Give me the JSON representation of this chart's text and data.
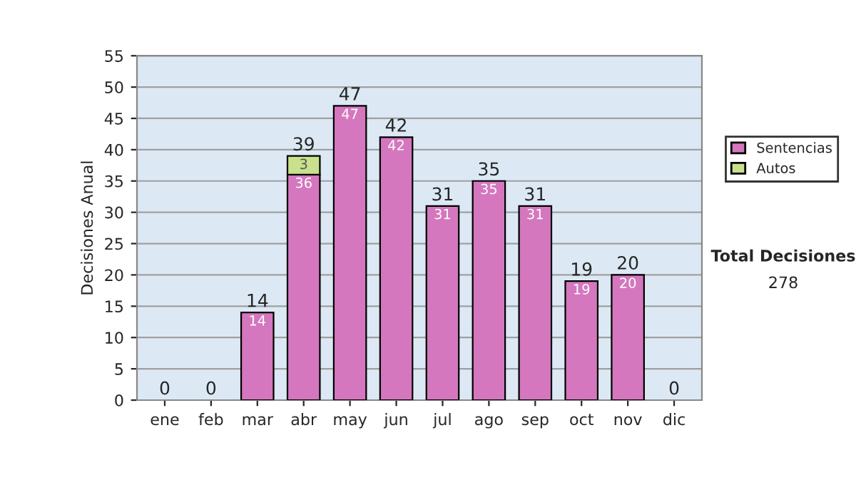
{
  "chart_data": {
    "type": "bar",
    "stacked": true,
    "ylabel": "Decisiones Anual",
    "categories": [
      "ene",
      "feb",
      "mar",
      "abr",
      "may",
      "jun",
      "jul",
      "ago",
      "sep",
      "oct",
      "nov",
      "dic"
    ],
    "series": [
      {
        "name": "Sentencias",
        "color": "#d477be",
        "values": [
          0,
          0,
          14,
          36,
          47,
          42,
          31,
          35,
          31,
          19,
          20,
          0
        ],
        "value_labels": [
          null,
          null,
          "14",
          "36",
          "47",
          "42",
          "31",
          "35",
          "31",
          "19",
          "20",
          null
        ]
      },
      {
        "name": "Autos",
        "color": "#c9e08c",
        "values": [
          0,
          0,
          0,
          3,
          0,
          0,
          0,
          0,
          0,
          0,
          0,
          0
        ],
        "value_labels": [
          null,
          null,
          null,
          "3",
          null,
          null,
          null,
          null,
          null,
          null,
          null,
          null
        ]
      }
    ],
    "totals": [
      "0",
      "0",
      "14",
      "39",
      "47",
      "42",
      "31",
      "35",
      "31",
      "19",
      "20",
      "0"
    ],
    "ylim": [
      0,
      55
    ],
    "yticks": [
      0,
      5,
      10,
      15,
      20,
      25,
      30,
      35,
      40,
      45,
      50,
      55
    ],
    "grid": "y",
    "legend": "right",
    "annotations": [
      "Total Decisiones",
      "278"
    ]
  }
}
